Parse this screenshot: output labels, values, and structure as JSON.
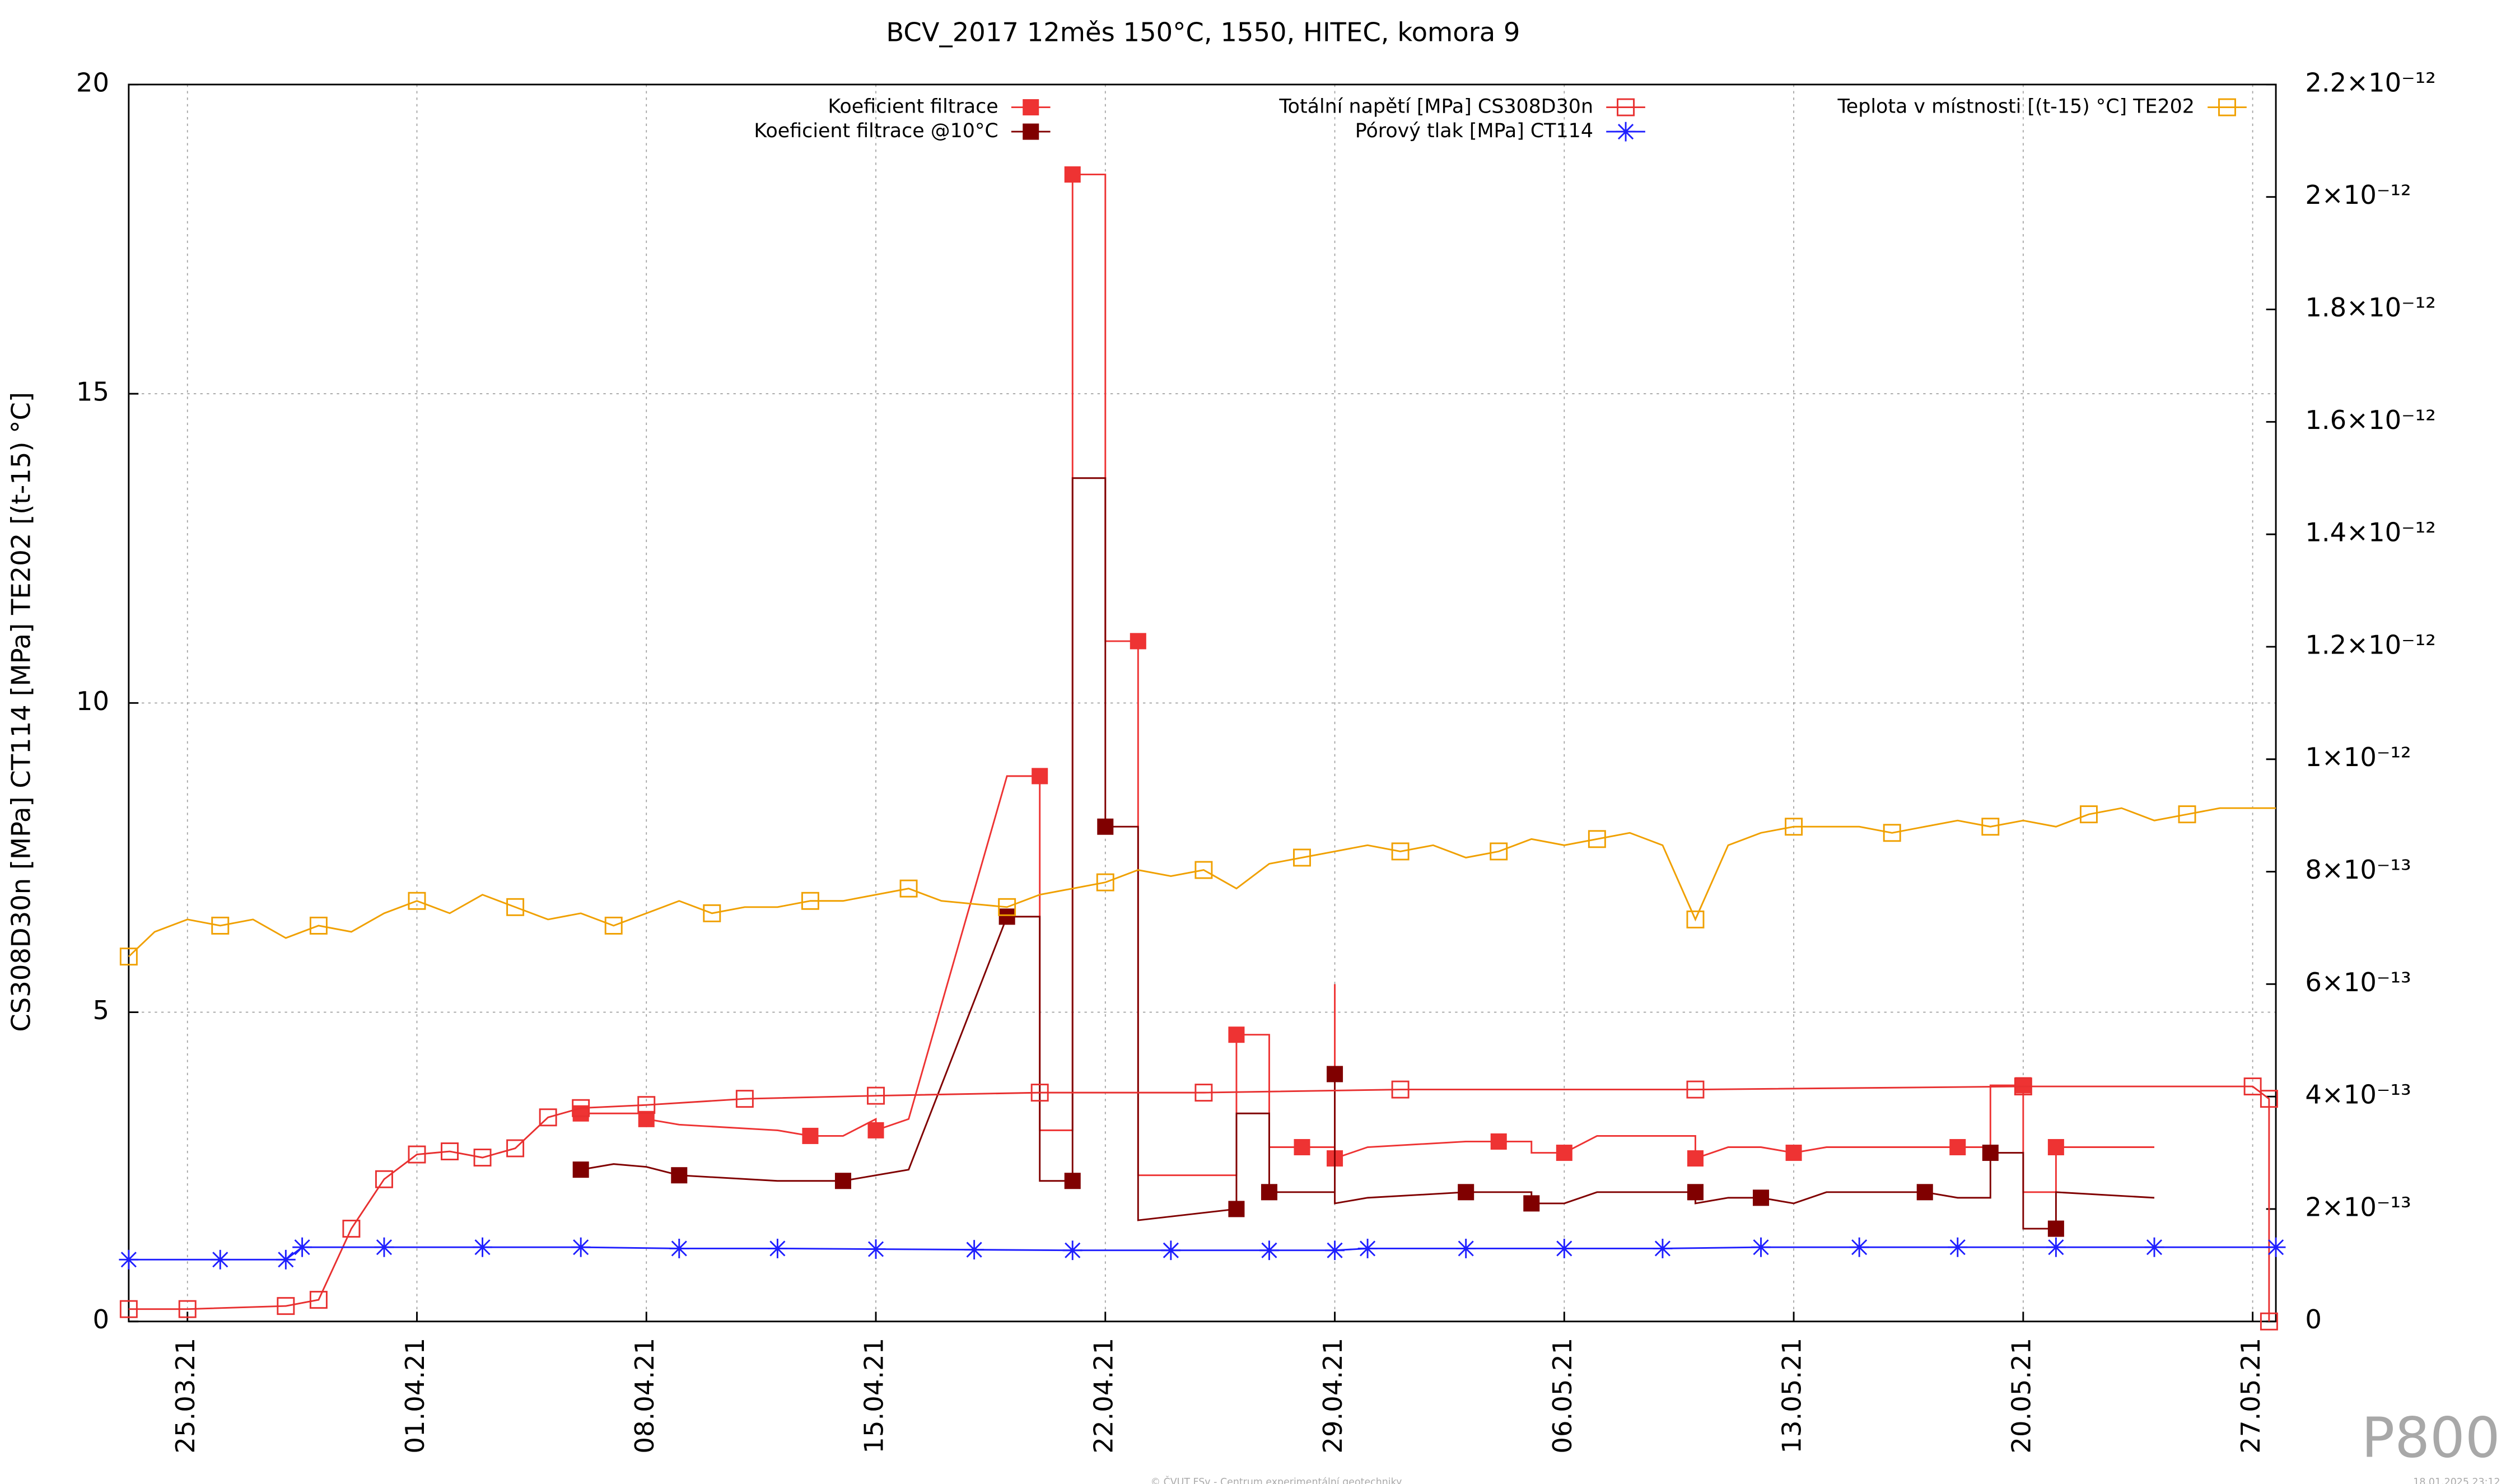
{
  "chart_data": {
    "type": "line",
    "title": "BCV_2017 12měs 150°C, 1550, HITEC, komora 9",
    "y_label": "CS308D30n [MPa] CT114 [MPa] TE202 [(t-15) °C]",
    "watermark": "P800",
    "footer": "© ČVUT FSv - Centrum experimentální geotechniky",
    "timestamp": "18.01.2025 23:12",
    "xlim": [
      "2021-03-23T05:00",
      "2021-05-27T17:00"
    ],
    "xticks": [
      {
        "value": "2021-03-25",
        "label": "25.03.21"
      },
      {
        "value": "2021-04-01",
        "label": "01.04.21"
      },
      {
        "value": "2021-04-08",
        "label": "08.04.21"
      },
      {
        "value": "2021-04-15",
        "label": "15.04.21"
      },
      {
        "value": "2021-04-22",
        "label": "22.04.21"
      },
      {
        "value": "2021-04-29",
        "label": "29.04.21"
      },
      {
        "value": "2021-05-06",
        "label": "06.05.21"
      },
      {
        "value": "2021-05-13",
        "label": "13.05.21"
      },
      {
        "value": "2021-05-20",
        "label": "20.05.21"
      },
      {
        "value": "2021-05-27",
        "label": "27.05.21"
      }
    ],
    "ylim": [
      0,
      20
    ],
    "yticks": [
      0,
      5,
      10,
      15,
      20
    ],
    "y2lim": [
      0,
      2.2e-12
    ],
    "y2ticks": [
      0,
      {
        "value": 2e-13,
        "label": "2×10⁻¹³"
      },
      {
        "value": 4e-13,
        "label": "4×10⁻¹³"
      },
      {
        "value": 6e-13,
        "label": "6×10⁻¹³"
      },
      {
        "value": 8e-13,
        "label": "8×10⁻¹³"
      },
      {
        "value": 1e-12,
        "label": "1×10⁻¹²"
      },
      {
        "value": 1.2e-12,
        "label": "1.2×10⁻¹²"
      },
      {
        "value": 1.4e-12,
        "label": "1.4×10⁻¹²"
      },
      {
        "value": 1.6e-12,
        "label": "1.6×10⁻¹²"
      },
      {
        "value": 1.8e-12,
        "label": "1.8×10⁻¹²"
      },
      {
        "value": 2e-12,
        "label": "2×10⁻¹²"
      },
      {
        "value": 2.2e-12,
        "label": "2.2×10⁻¹²"
      }
    ],
    "grid": true,
    "legend": "top",
    "series": [
      {
        "name": "Koeficient filtrace",
        "color": "#ee3333",
        "marker": "filled-square",
        "axis": "y2",
        "x": [
          "2021-04-06",
          "2021-04-07",
          "2021-04-08",
          "2021-04-08",
          "2021-04-09",
          "2021-04-12",
          "2021-04-13",
          "2021-04-14",
          "2021-04-15",
          "2021-04-15",
          "2021-04-16",
          "2021-04-19",
          "2021-04-20",
          "2021-04-20",
          "2021-04-21",
          "2021-04-21",
          "2021-04-22",
          "2021-04-22",
          "2021-04-23",
          "2021-04-23",
          "2021-04-26",
          "2021-04-26",
          "2021-04-27",
          "2021-04-27",
          "2021-04-28",
          "2021-04-29",
          "2021-04-29",
          "2021-04-29",
          "2021-04-30",
          "2021-05-03",
          "2021-05-04",
          "2021-05-05",
          "2021-05-05",
          "2021-05-06",
          "2021-05-07",
          "2021-05-10",
          "2021-05-10",
          "2021-05-11",
          "2021-05-12",
          "2021-05-13",
          "2021-05-14",
          "2021-05-17",
          "2021-05-18",
          "2021-05-19",
          "2021-05-19",
          "2021-05-20",
          "2021-05-20",
          "2021-05-21",
          "2021-05-21",
          "2021-05-24"
        ],
        "values": [
          3.7e-13,
          3.7e-13,
          3.7e-13,
          3.6e-13,
          3.5e-13,
          3.4e-13,
          3.3e-13,
          3.3e-13,
          3.6e-13,
          3.4e-13,
          3.6e-13,
          9.7e-13,
          9.7e-13,
          3.4e-13,
          3.4e-13,
          2.04e-12,
          2.04e-12,
          1.21e-12,
          1.21e-12,
          2.6e-13,
          2.6e-13,
          5.1e-13,
          5.1e-13,
          3.1e-13,
          3.1e-13,
          3.1e-13,
          6e-13,
          2.9e-13,
          3.1e-13,
          3.2e-13,
          3.2e-13,
          3.2e-13,
          3e-13,
          3e-13,
          3.3e-13,
          3.3e-13,
          2.9e-13,
          3.1e-13,
          3.1e-13,
          3e-13,
          3.1e-13,
          3.1e-13,
          3.1e-13,
          3.1e-13,
          4.2e-13,
          4.2e-13,
          2.3e-13,
          2.3e-13,
          3.1e-13,
          3.1e-13
        ]
      },
      {
        "name": "Koeficient filtrace @10°C",
        "color": "#800000",
        "marker": "filled-square",
        "axis": "y2",
        "x": [
          "2021-04-06",
          "2021-04-07",
          "2021-04-08",
          "2021-04-09",
          "2021-04-12",
          "2021-04-13",
          "2021-04-14",
          "2021-04-15",
          "2021-04-16",
          "2021-04-19",
          "2021-04-20",
          "2021-04-20",
          "2021-04-21",
          "2021-04-21",
          "2021-04-22",
          "2021-04-22",
          "2021-04-23",
          "2021-04-23",
          "2021-04-26",
          "2021-04-26",
          "2021-04-27",
          "2021-04-27",
          "2021-04-28",
          "2021-04-29",
          "2021-04-29",
          "2021-04-29",
          "2021-04-30",
          "2021-05-03",
          "2021-05-04",
          "2021-05-05",
          "2021-05-05",
          "2021-05-06",
          "2021-05-07",
          "2021-05-10",
          "2021-05-10",
          "2021-05-11",
          "2021-05-12",
          "2021-05-13",
          "2021-05-14",
          "2021-05-17",
          "2021-05-18",
          "2021-05-19",
          "2021-05-19",
          "2021-05-20",
          "2021-05-20",
          "2021-05-21",
          "2021-05-21",
          "2021-05-24"
        ],
        "values": [
          2.7e-13,
          2.8e-13,
          2.75e-13,
          2.6e-13,
          2.5e-13,
          2.5e-13,
          2.5e-13,
          2.6e-13,
          2.7e-13,
          7.2e-13,
          7.2e-13,
          2.5e-13,
          2.5e-13,
          1.5e-12,
          1.5e-12,
          8.8e-13,
          8.8e-13,
          1.8e-13,
          2e-13,
          3.7e-13,
          3.7e-13,
          2.3e-13,
          2.3e-13,
          2.3e-13,
          4.4e-13,
          2.1e-13,
          2.2e-13,
          2.3e-13,
          2.3e-13,
          2.3e-13,
          2.1e-13,
          2.1e-13,
          2.3e-13,
          2.3e-13,
          2.1e-13,
          2.2e-13,
          2.2e-13,
          2.1e-13,
          2.3e-13,
          2.3e-13,
          2.2e-13,
          2.2e-13,
          3e-13,
          3e-13,
          1.65e-13,
          1.65e-13,
          2.3e-13,
          2.2e-13
        ]
      },
      {
        "name": "Totální napětí [MPa] CS308D30n",
        "color": "#e83030",
        "marker": "open-square",
        "x": [
          "2021-03-23T05:00",
          "2021-03-25",
          "2021-03-28",
          "2021-03-29",
          "2021-03-30",
          "2021-03-31",
          "2021-04-01",
          "2021-04-02",
          "2021-04-03",
          "2021-04-04",
          "2021-04-05",
          "2021-04-06",
          "2021-04-08",
          "2021-04-11",
          "2021-04-15",
          "2021-04-20",
          "2021-04-25",
          "2021-05-01",
          "2021-05-10",
          "2021-05-20",
          "2021-05-27",
          "2021-05-27T12:00",
          "2021-05-27T12:00"
        ],
        "values": [
          0.2,
          0.2,
          0.25,
          0.35,
          1.5,
          2.3,
          2.7,
          2.75,
          2.65,
          2.8,
          3.3,
          3.45,
          3.5,
          3.6,
          3.65,
          3.7,
          3.7,
          3.75,
          3.75,
          3.8,
          3.8,
          3.6,
          0
        ]
      },
      {
        "name": "Pórový tlak [MPa] CT114",
        "color": "#1f1fff",
        "marker": "asterisk",
        "x": [
          "2021-03-23T05:00",
          "2021-03-26",
          "2021-03-28",
          "2021-03-28T12:00",
          "2021-03-31",
          "2021-04-03",
          "2021-04-06",
          "2021-04-09",
          "2021-04-12",
          "2021-04-15",
          "2021-04-18",
          "2021-04-21",
          "2021-04-24",
          "2021-04-27",
          "2021-04-29",
          "2021-04-30",
          "2021-05-03",
          "2021-05-06",
          "2021-05-09",
          "2021-05-12",
          "2021-05-15",
          "2021-05-18",
          "2021-05-21",
          "2021-05-24",
          "2021-05-27T17:00"
        ],
        "values": [
          1.0,
          1.0,
          1.0,
          1.2,
          1.2,
          1.2,
          1.2,
          1.18,
          1.18,
          1.17,
          1.16,
          1.15,
          1.15,
          1.15,
          1.15,
          1.18,
          1.18,
          1.18,
          1.18,
          1.2,
          1.2,
          1.2,
          1.2,
          1.2,
          1.2
        ]
      },
      {
        "name": "Teplota v místnosti [(t-15) °C] TE202",
        "color": "#f0a000",
        "marker": "open-square",
        "x": [
          "2021-03-23T05:00",
          "2021-03-24",
          "2021-03-25",
          "2021-03-26",
          "2021-03-27",
          "2021-03-28",
          "2021-03-29",
          "2021-03-30",
          "2021-03-31",
          "2021-04-01",
          "2021-04-02",
          "2021-04-03",
          "2021-04-04",
          "2021-04-05",
          "2021-04-06",
          "2021-04-07",
          "2021-04-08",
          "2021-04-09",
          "2021-04-10",
          "2021-04-11",
          "2021-04-12",
          "2021-04-13",
          "2021-04-14",
          "2021-04-15",
          "2021-04-16",
          "2021-04-17",
          "2021-04-18",
          "2021-04-19",
          "2021-04-20",
          "2021-04-21",
          "2021-04-22",
          "2021-04-23",
          "2021-04-24",
          "2021-04-25",
          "2021-04-26",
          "2021-04-27",
          "2021-04-28",
          "2021-04-29",
          "2021-04-30",
          "2021-05-01",
          "2021-05-02",
          "2021-05-03",
          "2021-05-04",
          "2021-05-05",
          "2021-05-06",
          "2021-05-07",
          "2021-05-08",
          "2021-05-09",
          "2021-05-10",
          "2021-05-11",
          "2021-05-12",
          "2021-05-13",
          "2021-05-14",
          "2021-05-15",
          "2021-05-16",
          "2021-05-17",
          "2021-05-18",
          "2021-05-19",
          "2021-05-20",
          "2021-05-21",
          "2021-05-22",
          "2021-05-23",
          "2021-05-24",
          "2021-05-25",
          "2021-05-26",
          "2021-05-27T17:00"
        ],
        "values": [
          5.9,
          6.3,
          6.5,
          6.4,
          6.5,
          6.2,
          6.4,
          6.3,
          6.6,
          6.8,
          6.6,
          6.9,
          6.7,
          6.5,
          6.6,
          6.4,
          6.6,
          6.8,
          6.6,
          6.7,
          6.7,
          6.8,
          6.8,
          6.9,
          7.0,
          6.8,
          6.75,
          6.7,
          6.9,
          7.0,
          7.1,
          7.3,
          7.2,
          7.3,
          7.0,
          7.4,
          7.5,
          7.6,
          7.7,
          7.6,
          7.7,
          7.5,
          7.6,
          7.8,
          7.7,
          7.8,
          7.9,
          7.7,
          6.5,
          7.7,
          7.9,
          8.0,
          8.0,
          8.0,
          7.9,
          8.0,
          8.1,
          8.0,
          8.1,
          8.0,
          8.2,
          8.3,
          8.1,
          8.2,
          8.3,
          8.3
        ]
      }
    ]
  }
}
